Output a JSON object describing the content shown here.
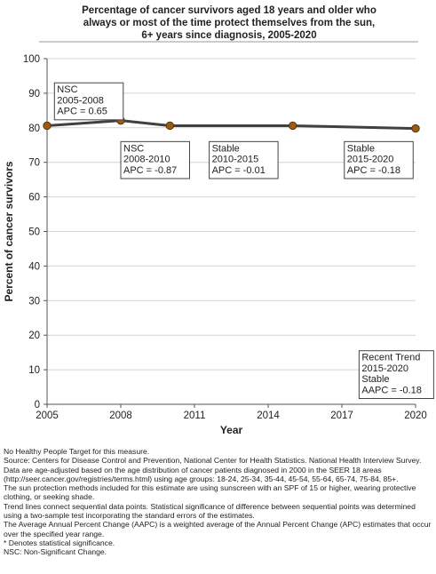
{
  "chart_data": {
    "type": "line",
    "title_lines": [
      "Percentage of cancer survivors aged 18 years and older who",
      "always or most of the time protect themselves from the sun,",
      "6+ years since diagnosis,  2005-2020"
    ],
    "xlabel": "Year",
    "ylabel": "Percent of cancer survivors",
    "xlim": [
      2005,
      2020
    ],
    "ylim": [
      0,
      100
    ],
    "x_ticks": [
      2005,
      2008,
      2011,
      2014,
      2017,
      2020
    ],
    "y_ticks": [
      0,
      10,
      20,
      30,
      40,
      50,
      60,
      70,
      80,
      90,
      100
    ],
    "grid": "horizontal",
    "colors": {
      "line": "#404040",
      "marker": "#9a5b14",
      "marker_edge": "#5a3208",
      "grid": "#d4d4d4"
    },
    "series": [
      {
        "x": [
          2005,
          2008,
          2010,
          2015,
          2020
        ],
        "y": [
          80.6,
          82.1,
          80.6,
          80.6,
          79.8
        ]
      }
    ],
    "annotations": [
      {
        "lines": [
          "NSC",
          "2005-2008",
          "APC =  0.65"
        ],
        "anchor": [
          2005.3,
          93
        ]
      },
      {
        "lines": [
          "NSC",
          "2008-2010",
          "APC = -0.87"
        ],
        "anchor": [
          2008.0,
          76
        ]
      },
      {
        "lines": [
          "Stable",
          "2010-2015",
          "APC = -0.01"
        ],
        "anchor": [
          2011.6,
          76
        ]
      },
      {
        "lines": [
          "Stable",
          "2015-2020",
          "APC = -0.18"
        ],
        "anchor": [
          2017.1,
          76
        ]
      },
      {
        "lines": [
          "Recent Trend",
          "2015-2020",
          "Stable",
          "AAPC = -0.18"
        ],
        "anchor": [
          2017.7,
          15.5
        ]
      }
    ]
  },
  "notes": [
    "No Healthy People Target for this measure.",
    "Source: Centers for Disease Control and Prevention, National Center for Health Statistics. National Health Interview Survey.",
    "Data are age-adjusted based on the age distribution of cancer patients diagnosed in 2000 in the SEER 18 areas (http://seer.cancer.gov/registries/terms.html) using age groups: 18-24, 25-34, 35-44, 45-54, 55-64, 65-74, 75-84, 85+.",
    "The sun protection methods included for this estimate are using sunscreen with an SPF of 15 or higher, wearing protective clothing, or seeking shade.",
    "Trend lines connect sequential data points. Statistical significance of difference between sequential points was determined using a two-sample test incorporating the standard errors of the estimates.",
    "The Average Annual Percent Change (AAPC) is a weighted average of the Annual Percent Change (APC) estimates that occur over the specified year range.",
    "* Denotes statistical significance.",
    "NSC: Non-Significant Change."
  ]
}
